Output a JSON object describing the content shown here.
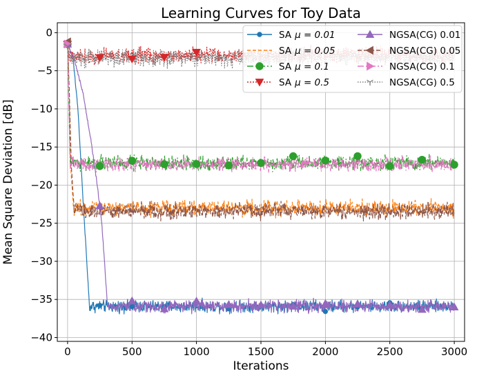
{
  "chart_data": {
    "type": "line",
    "title": "Learning Curves for Toy Data",
    "xlabel": "Iterations",
    "ylabel": "Mean Square Deviation [dB]",
    "xlim": [
      -80,
      3080
    ],
    "ylim": [
      -40.5,
      1.3
    ],
    "xticks": [
      0,
      500,
      1000,
      1500,
      2000,
      2500,
      3000
    ],
    "xtick_labels": [
      "0",
      "500",
      "1000",
      "1500",
      "2000",
      "2500",
      "3000"
    ],
    "yticks": [
      0,
      -5,
      -10,
      -15,
      -20,
      -25,
      -30,
      -35,
      -40
    ],
    "ytick_labels": [
      "0",
      "−5",
      "−10",
      "−15",
      "−20",
      "−25",
      "−30",
      "−35",
      "−40"
    ],
    "grid": true,
    "legend_position": "top-right",
    "legend_columns": 2,
    "series": [
      {
        "name": "SA μ = 0.01",
        "label_prefix": "SA",
        "label_param": "μ = 0.01",
        "color": "#1f77b4",
        "dash": "",
        "marker": "circle",
        "keypoints": [
          [
            0,
            -1.5
          ],
          [
            40,
            -3
          ],
          [
            80,
            -10
          ],
          [
            120,
            -22
          ],
          [
            170,
            -36
          ]
        ],
        "level": -35.9,
        "noise": 0.6,
        "x_end": 3000,
        "marker_x": [
          0,
          250,
          500,
          750,
          1000,
          1250,
          1500,
          1750,
          2000,
          2250,
          2500,
          2750,
          3000
        ]
      },
      {
        "name": "SA μ = 0.05",
        "label_prefix": "SA",
        "label_param": "μ = 0.05",
        "color": "#ff7f0e",
        "dash": "5,3",
        "marker": "none",
        "keypoints": [
          [
            0,
            -1.5
          ],
          [
            10,
            -6
          ],
          [
            25,
            -18
          ],
          [
            45,
            -23
          ]
        ],
        "level": -23.0,
        "noise": 0.8,
        "x_end": 3000,
        "marker_x": []
      },
      {
        "name": "SA μ = 0.1",
        "label_prefix": "SA",
        "label_param": "μ = 0.1",
        "color": "#2ca02c",
        "dash": "9,3,2,3",
        "marker": "circle-large",
        "keypoints": [
          [
            0,
            -1.5
          ],
          [
            8,
            -8
          ],
          [
            20,
            -17
          ]
        ],
        "level": -17.1,
        "noise": 0.7,
        "x_end": 3000,
        "marker_x": [
          0,
          250,
          500,
          750,
          1000,
          1250,
          1500,
          1750,
          2000,
          2250,
          2500,
          2750,
          3000
        ]
      },
      {
        "name": "SA μ = 0.5",
        "label_prefix": "SA",
        "label_param": "μ = 0.5",
        "color": "#d62728",
        "dash": "2,2",
        "marker": "triangle-down",
        "keypoints": [
          [
            0,
            -1.5
          ],
          [
            10,
            -2.5
          ]
        ],
        "level": -3.0,
        "noise": 0.8,
        "x_end": 3000,
        "marker_x": [
          0,
          250,
          500,
          750,
          1000
        ]
      },
      {
        "name": "NGSA(CG) 0.01",
        "label_prefix": "NGSA(CG) 0.01",
        "label_param": "",
        "color": "#9467bd",
        "dash": "",
        "marker": "triangle-up",
        "keypoints": [
          [
            0,
            -1.5
          ],
          [
            60,
            -4
          ],
          [
            120,
            -8
          ],
          [
            180,
            -14
          ],
          [
            230,
            -20
          ],
          [
            265,
            -25
          ],
          [
            290,
            -31
          ],
          [
            310,
            -36
          ]
        ],
        "level": -35.9,
        "noise": 0.6,
        "x_end": 3000,
        "marker_x": [
          0,
          250,
          500,
          750,
          1000,
          1250,
          1500,
          1750,
          2000,
          2250,
          2500,
          2750,
          3000
        ]
      },
      {
        "name": "NGSA(CG) 0.05",
        "label_prefix": "NGSA(CG) 0.05",
        "label_param": "",
        "color": "#8c564b",
        "dash": "6,3",
        "marker": "triangle-left",
        "keypoints": [
          [
            0,
            -1.2
          ],
          [
            12,
            -7
          ],
          [
            30,
            -18
          ],
          [
            50,
            -23
          ]
        ],
        "level": -23.4,
        "noise": 0.8,
        "x_end": 3000,
        "marker_x": [
          0
        ]
      },
      {
        "name": "NGSA(CG) 0.1",
        "label_prefix": "NGSA(CG) 0.1",
        "label_param": "",
        "color": "#e377c2",
        "dash": "9,3,2,3",
        "marker": "triangle-right",
        "keypoints": [
          [
            0,
            -1.5
          ],
          [
            8,
            -8
          ],
          [
            20,
            -17
          ]
        ],
        "level": -17.3,
        "noise": 0.7,
        "x_end": 3000,
        "marker_x": [
          0
        ]
      },
      {
        "name": "NGSA(CG) 0.5",
        "label_prefix": "NGSA(CG) 0.5",
        "label_param": "",
        "color": "#7f7f7f",
        "dash": "1.5,2",
        "marker": "tri-down",
        "keypoints": [
          [
            0,
            -1.8
          ],
          [
            10,
            -2.8
          ]
        ],
        "level": -3.3,
        "noise": 0.9,
        "x_end": 3000,
        "marker_x": [
          0
        ]
      }
    ]
  }
}
